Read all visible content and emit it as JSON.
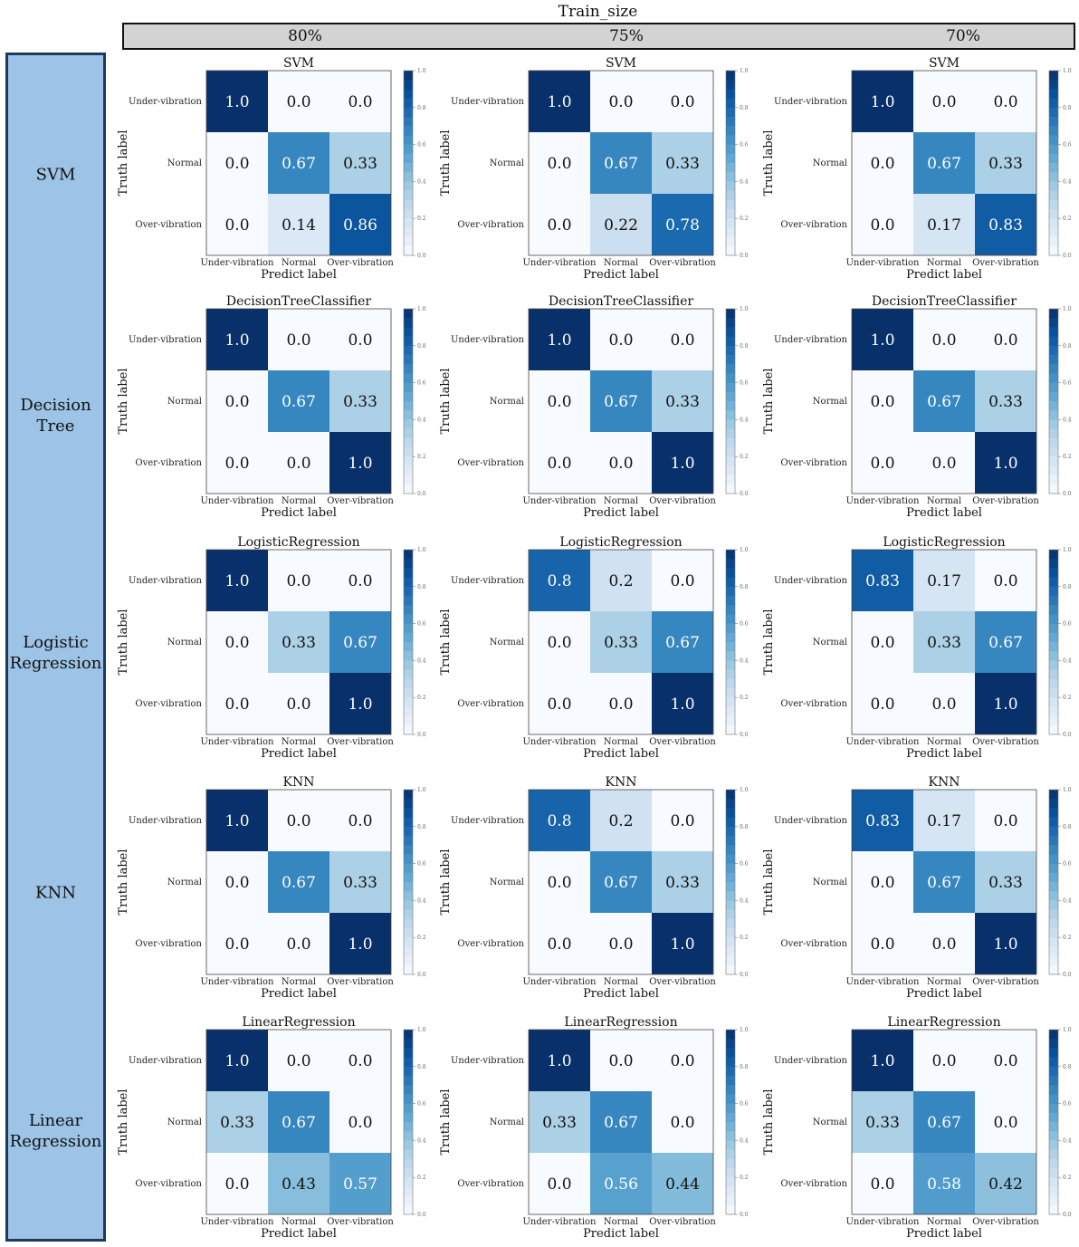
{
  "header": {
    "title": "Train_size",
    "columns": [
      "80%",
      "75%",
      "70%"
    ]
  },
  "rows": [
    {
      "label": "SVM"
    },
    {
      "label": "Decision\nTree"
    },
    {
      "label": "Logistic\nRegression"
    },
    {
      "label": "KNN"
    },
    {
      "label": "Linear\nRegression"
    }
  ],
  "colors": {
    "panel_fill": "#9dc3e6",
    "panel_border": "#1c3a5c",
    "header_fill": "#d3d3d3",
    "colormap": "Blues"
  },
  "chart_data": [
    {
      "type": "heatmap",
      "row": 0,
      "col": 0,
      "title": "SVM",
      "xlabel": "Predict label",
      "ylabel": "Truth label",
      "categories": [
        "Under-vibration",
        "Normal",
        "Over-vibration"
      ],
      "values": [
        [
          1.0,
          0.0,
          0.0
        ],
        [
          0.0,
          0.67,
          0.33
        ],
        [
          0.0,
          0.14,
          0.86
        ]
      ],
      "labels": [
        [
          "1.0",
          "0.0",
          "0.0"
        ],
        [
          "0.0",
          "0.67",
          "0.33"
        ],
        [
          "0.0",
          "0.14",
          "0.86"
        ]
      ],
      "colorbar_range": [
        0,
        1
      ],
      "colorbar_ticks": [
        "0.0",
        "0.2",
        "0.4",
        "0.6",
        "0.8",
        "1.0"
      ]
    },
    {
      "type": "heatmap",
      "row": 0,
      "col": 1,
      "title": "SVM",
      "xlabel": "Predict label",
      "ylabel": "Truth label",
      "categories": [
        "Under-vibration",
        "Normal",
        "Over-vibration"
      ],
      "values": [
        [
          1.0,
          0.0,
          0.0
        ],
        [
          0.0,
          0.67,
          0.33
        ],
        [
          0.0,
          0.22,
          0.78
        ]
      ],
      "labels": [
        [
          "1.0",
          "0.0",
          "0.0"
        ],
        [
          "0.0",
          "0.67",
          "0.33"
        ],
        [
          "0.0",
          "0.22",
          "0.78"
        ]
      ],
      "colorbar_range": [
        0,
        1
      ],
      "colorbar_ticks": [
        "0.0",
        "0.2",
        "0.4",
        "0.6",
        "0.8",
        "1.0"
      ]
    },
    {
      "type": "heatmap",
      "row": 0,
      "col": 2,
      "title": "SVM",
      "xlabel": "Predict label",
      "ylabel": "Truth label",
      "categories": [
        "Under-vibration",
        "Normal",
        "Over-vibration"
      ],
      "values": [
        [
          1.0,
          0.0,
          0.0
        ],
        [
          0.0,
          0.67,
          0.33
        ],
        [
          0.0,
          0.17,
          0.83
        ]
      ],
      "labels": [
        [
          "1.0",
          "0.0",
          "0.0"
        ],
        [
          "0.0",
          "0.67",
          "0.33"
        ],
        [
          "0.0",
          "0.17",
          "0.83"
        ]
      ],
      "colorbar_range": [
        0,
        1
      ],
      "colorbar_ticks": [
        "0.0",
        "0.2",
        "0.4",
        "0.6",
        "0.8",
        "1.0"
      ]
    },
    {
      "type": "heatmap",
      "row": 1,
      "col": 0,
      "title": "DecisionTreeClassifier",
      "xlabel": "Predict label",
      "ylabel": "Truth label",
      "categories": [
        "Under-vibration",
        "Normal",
        "Over-vibration"
      ],
      "values": [
        [
          1.0,
          0.0,
          0.0
        ],
        [
          0.0,
          0.67,
          0.33
        ],
        [
          0.0,
          0.0,
          1.0
        ]
      ],
      "labels": [
        [
          "1.0",
          "0.0",
          "0.0"
        ],
        [
          "0.0",
          "0.67",
          "0.33"
        ],
        [
          "0.0",
          "0.0",
          "1.0"
        ]
      ],
      "colorbar_range": [
        0,
        1
      ],
      "colorbar_ticks": [
        "0.0",
        "0.2",
        "0.4",
        "0.6",
        "0.8",
        "1.0"
      ]
    },
    {
      "type": "heatmap",
      "row": 1,
      "col": 1,
      "title": "DecisionTreeClassifier",
      "xlabel": "Predict label",
      "ylabel": "Truth label",
      "categories": [
        "Under-vibration",
        "Normal",
        "Over-vibration"
      ],
      "values": [
        [
          1.0,
          0.0,
          0.0
        ],
        [
          0.0,
          0.67,
          0.33
        ],
        [
          0.0,
          0.0,
          1.0
        ]
      ],
      "labels": [
        [
          "1.0",
          "0.0",
          "0.0"
        ],
        [
          "0.0",
          "0.67",
          "0.33"
        ],
        [
          "0.0",
          "0.0",
          "1.0"
        ]
      ],
      "colorbar_range": [
        0,
        1
      ],
      "colorbar_ticks": [
        "0.0",
        "0.2",
        "0.4",
        "0.6",
        "0.8",
        "1.0"
      ]
    },
    {
      "type": "heatmap",
      "row": 1,
      "col": 2,
      "title": "DecisionTreeClassifier",
      "xlabel": "Predict label",
      "ylabel": "Truth label",
      "categories": [
        "Under-vibration",
        "Normal",
        "Over-vibration"
      ],
      "values": [
        [
          1.0,
          0.0,
          0.0
        ],
        [
          0.0,
          0.67,
          0.33
        ],
        [
          0.0,
          0.0,
          1.0
        ]
      ],
      "labels": [
        [
          "1.0",
          "0.0",
          "0.0"
        ],
        [
          "0.0",
          "0.67",
          "0.33"
        ],
        [
          "0.0",
          "0.0",
          "1.0"
        ]
      ],
      "colorbar_range": [
        0,
        1
      ],
      "colorbar_ticks": [
        "0.0",
        "0.2",
        "0.4",
        "0.6",
        "0.8",
        "1.0"
      ]
    },
    {
      "type": "heatmap",
      "row": 2,
      "col": 0,
      "title": "LogisticRegression",
      "xlabel": "Predict label",
      "ylabel": "Truth label",
      "categories": [
        "Under-vibration",
        "Normal",
        "Over-vibration"
      ],
      "values": [
        [
          1.0,
          0.0,
          0.0
        ],
        [
          0.0,
          0.33,
          0.67
        ],
        [
          0.0,
          0.0,
          1.0
        ]
      ],
      "labels": [
        [
          "1.0",
          "0.0",
          "0.0"
        ],
        [
          "0.0",
          "0.33",
          "0.67"
        ],
        [
          "0.0",
          "0.0",
          "1.0"
        ]
      ],
      "colorbar_range": [
        0,
        1
      ],
      "colorbar_ticks": [
        "0.0",
        "0.2",
        "0.4",
        "0.6",
        "0.8",
        "1.0"
      ]
    },
    {
      "type": "heatmap",
      "row": 2,
      "col": 1,
      "title": "LogisticRegression",
      "xlabel": "Predict label",
      "ylabel": "Truth label",
      "categories": [
        "Under-vibration",
        "Normal",
        "Over-vibration"
      ],
      "values": [
        [
          0.8,
          0.2,
          0.0
        ],
        [
          0.0,
          0.33,
          0.67
        ],
        [
          0.0,
          0.0,
          1.0
        ]
      ],
      "labels": [
        [
          "0.8",
          "0.2",
          "0.0"
        ],
        [
          "0.0",
          "0.33",
          "0.67"
        ],
        [
          "0.0",
          "0.0",
          "1.0"
        ]
      ],
      "colorbar_range": [
        0,
        1
      ],
      "colorbar_ticks": [
        "0.0",
        "0.2",
        "0.4",
        "0.6",
        "0.8",
        "1.0"
      ]
    },
    {
      "type": "heatmap",
      "row": 2,
      "col": 2,
      "title": "LogisticRegression",
      "xlabel": "Predict label",
      "ylabel": "Truth label",
      "categories": [
        "Under-vibration",
        "Normal",
        "Over-vibration"
      ],
      "values": [
        [
          0.83,
          0.17,
          0.0
        ],
        [
          0.0,
          0.33,
          0.67
        ],
        [
          0.0,
          0.0,
          1.0
        ]
      ],
      "labels": [
        [
          "0.83",
          "0.17",
          "0.0"
        ],
        [
          "0.0",
          "0.33",
          "0.67"
        ],
        [
          "0.0",
          "0.0",
          "1.0"
        ]
      ],
      "colorbar_range": [
        0,
        1
      ],
      "colorbar_ticks": [
        "0.0",
        "0.2",
        "0.4",
        "0.6",
        "0.8",
        "1.0"
      ]
    },
    {
      "type": "heatmap",
      "row": 3,
      "col": 0,
      "title": "KNN",
      "xlabel": "Predict label",
      "ylabel": "Truth label",
      "categories": [
        "Under-vibration",
        "Normal",
        "Over-vibration"
      ],
      "values": [
        [
          1.0,
          0.0,
          0.0
        ],
        [
          0.0,
          0.67,
          0.33
        ],
        [
          0.0,
          0.0,
          1.0
        ]
      ],
      "labels": [
        [
          "1.0",
          "0.0",
          "0.0"
        ],
        [
          "0.0",
          "0.67",
          "0.33"
        ],
        [
          "0.0",
          "0.0",
          "1.0"
        ]
      ],
      "colorbar_range": [
        0,
        1
      ],
      "colorbar_ticks": [
        "0.0",
        "0.2",
        "0.4",
        "0.6",
        "0.8",
        "1.0"
      ]
    },
    {
      "type": "heatmap",
      "row": 3,
      "col": 1,
      "title": "KNN",
      "xlabel": "Predict label",
      "ylabel": "Truth label",
      "categories": [
        "Under-vibration",
        "Normal",
        "Over-vibration"
      ],
      "values": [
        [
          0.8,
          0.2,
          0.0
        ],
        [
          0.0,
          0.67,
          0.33
        ],
        [
          0.0,
          0.0,
          1.0
        ]
      ],
      "labels": [
        [
          "0.8",
          "0.2",
          "0.0"
        ],
        [
          "0.0",
          "0.67",
          "0.33"
        ],
        [
          "0.0",
          "0.0",
          "1.0"
        ]
      ],
      "colorbar_range": [
        0,
        1
      ],
      "colorbar_ticks": [
        "0.0",
        "0.2",
        "0.4",
        "0.6",
        "0.8",
        "1.0"
      ]
    },
    {
      "type": "heatmap",
      "row": 3,
      "col": 2,
      "title": "KNN",
      "xlabel": "Predict label",
      "ylabel": "Truth label",
      "categories": [
        "Under-vibration",
        "Normal",
        "Over-vibration"
      ],
      "values": [
        [
          0.83,
          0.17,
          0.0
        ],
        [
          0.0,
          0.67,
          0.33
        ],
        [
          0.0,
          0.0,
          1.0
        ]
      ],
      "labels": [
        [
          "0.83",
          "0.17",
          "0.0"
        ],
        [
          "0.0",
          "0.67",
          "0.33"
        ],
        [
          "0.0",
          "0.0",
          "1.0"
        ]
      ],
      "colorbar_range": [
        0,
        1
      ],
      "colorbar_ticks": [
        "0.0",
        "0.2",
        "0.4",
        "0.6",
        "0.8",
        "1.0"
      ]
    },
    {
      "type": "heatmap",
      "row": 4,
      "col": 0,
      "title": "LinearRegression",
      "xlabel": "Predict label",
      "ylabel": "Truth label",
      "categories": [
        "Under-vibration",
        "Normal",
        "Over-vibration"
      ],
      "values": [
        [
          1.0,
          0.0,
          0.0
        ],
        [
          0.33,
          0.67,
          0.0
        ],
        [
          0.0,
          0.43,
          0.57
        ]
      ],
      "labels": [
        [
          "1.0",
          "0.0",
          "0.0"
        ],
        [
          "0.33",
          "0.67",
          "0.0"
        ],
        [
          "0.0",
          "0.43",
          "0.57"
        ]
      ],
      "colorbar_range": [
        0,
        1
      ],
      "colorbar_ticks": [
        "0.0",
        "0.2",
        "0.4",
        "0.6",
        "0.8",
        "1.0"
      ]
    },
    {
      "type": "heatmap",
      "row": 4,
      "col": 1,
      "title": "LinearRegression",
      "xlabel": "Predict label",
      "ylabel": "Truth label",
      "categories": [
        "Under-vibration",
        "Normal",
        "Over-vibration"
      ],
      "values": [
        [
          1.0,
          0.0,
          0.0
        ],
        [
          0.33,
          0.67,
          0.0
        ],
        [
          0.0,
          0.56,
          0.44
        ]
      ],
      "labels": [
        [
          "1.0",
          "0.0",
          "0.0"
        ],
        [
          "0.33",
          "0.67",
          "0.0"
        ],
        [
          "0.0",
          "0.56",
          "0.44"
        ]
      ],
      "colorbar_range": [
        0,
        1
      ],
      "colorbar_ticks": [
        "0.0",
        "0.2",
        "0.4",
        "0.6",
        "0.8",
        "1.0"
      ]
    },
    {
      "type": "heatmap",
      "row": 4,
      "col": 2,
      "title": "LinearRegression",
      "xlabel": "Predict label",
      "ylabel": "Truth label",
      "categories": [
        "Under-vibration",
        "Normal",
        "Over-vibration"
      ],
      "values": [
        [
          1.0,
          0.0,
          0.0
        ],
        [
          0.33,
          0.67,
          0.0
        ],
        [
          0.0,
          0.58,
          0.42
        ]
      ],
      "labels": [
        [
          "1.0",
          "0.0",
          "0.0"
        ],
        [
          "0.33",
          "0.67",
          "0.0"
        ],
        [
          "0.0",
          "0.58",
          "0.42"
        ]
      ],
      "colorbar_range": [
        0,
        1
      ],
      "colorbar_ticks": [
        "0.0",
        "0.2",
        "0.4",
        "0.6",
        "0.8",
        "1.0"
      ]
    }
  ]
}
